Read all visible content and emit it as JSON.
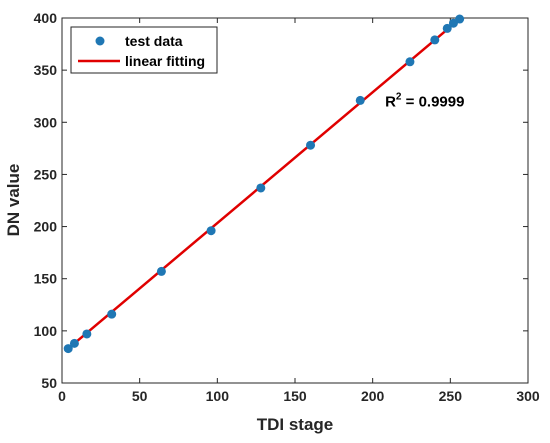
{
  "chart_data": {
    "type": "scatter",
    "title": "",
    "xlabel": "TDI stage",
    "ylabel": "DN value",
    "xlim": [
      0,
      300
    ],
    "ylim": [
      50,
      400
    ],
    "xticks": [
      0,
      50,
      100,
      150,
      200,
      250,
      300
    ],
    "yticks": [
      50,
      100,
      150,
      200,
      250,
      300,
      350,
      400
    ],
    "grid": false,
    "legend_position": "top-left",
    "series": [
      {
        "name": "test data",
        "kind": "scatter",
        "color": "#1f77b4",
        "x": [
          4,
          8,
          16,
          32,
          64,
          96,
          128,
          160,
          192,
          224,
          240,
          248,
          252,
          256
        ],
        "y": [
          83,
          88,
          97,
          116,
          157,
          196,
          237,
          278,
          321,
          358,
          379,
          390,
          395,
          399
        ]
      },
      {
        "name": "linear fitting",
        "kind": "line",
        "color": "#e00000",
        "x": [
          4,
          256
        ],
        "y": [
          83,
          399
        ]
      }
    ],
    "annotation": {
      "base": "R",
      "superscript": "2",
      "value": " = 0.9999",
      "x": 208,
      "y": 315
    }
  }
}
